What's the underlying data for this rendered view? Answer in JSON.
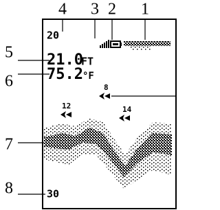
{
  "callouts": [
    "1",
    "2",
    "3",
    "4",
    "5",
    "6",
    "7",
    "8"
  ],
  "screen": {
    "range_top": "20",
    "depth": "21.0",
    "depth_unit": "FT",
    "temperature": "75.2",
    "temperature_unit": "°F",
    "fish": [
      "8",
      "12",
      "14"
    ],
    "range_bottom": "30"
  }
}
